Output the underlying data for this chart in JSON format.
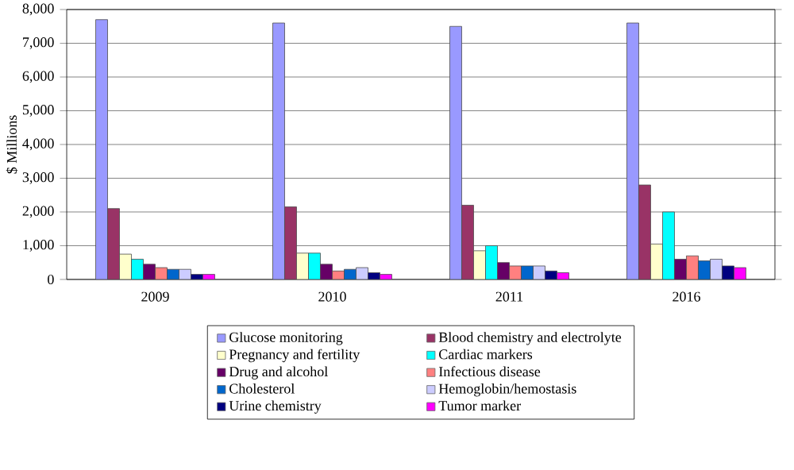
{
  "chart_data": {
    "type": "bar",
    "ylabel": "$ Millions",
    "categories": [
      "2009",
      "2010",
      "2011",
      "2016"
    ],
    "series": [
      {
        "name": "Glucose monitoring",
        "color": "#9999ff",
        "values": [
          7700,
          7600,
          7500,
          7600
        ]
      },
      {
        "name": "Blood chemistry and electrolyte",
        "color": "#993366",
        "values": [
          2100,
          2150,
          2200,
          2800
        ]
      },
      {
        "name": "Pregnancy and fertility",
        "color": "#ffffcc",
        "values": [
          750,
          780,
          850,
          1050
        ]
      },
      {
        "name": "Cardiac markers",
        "color": "#00ffff",
        "values": [
          600,
          780,
          1000,
          2000
        ]
      },
      {
        "name": "Drug and alcohol",
        "color": "#660066",
        "values": [
          450,
          450,
          500,
          600
        ]
      },
      {
        "name": "Infectious disease",
        "color": "#ff8080",
        "values": [
          350,
          250,
          400,
          700
        ]
      },
      {
        "name": "Cholesterol",
        "color": "#0066cc",
        "values": [
          300,
          300,
          400,
          550
        ]
      },
      {
        "name": "Hemoglobin/hemostasis",
        "color": "#ccccff",
        "values": [
          300,
          350,
          400,
          600
        ]
      },
      {
        "name": "Urine chemistry",
        "color": "#000080",
        "values": [
          150,
          200,
          250,
          400
        ]
      },
      {
        "name": "Tumor marker",
        "color": "#ff00ff",
        "values": [
          150,
          150,
          200,
          350
        ]
      }
    ],
    "ylim": [
      0,
      8000
    ],
    "yticks": [
      0,
      {
        "value": 1000,
        "label": "1,000"
      },
      {
        "value": 2000,
        "label": "2,000"
      },
      {
        "value": 3000,
        "label": "3,000"
      },
      {
        "value": 4000,
        "label": "4,000"
      },
      {
        "value": 5000,
        "label": "5,000"
      },
      {
        "value": 6000,
        "label": "6,000"
      },
      {
        "value": 7000,
        "label": "7,000"
      },
      {
        "value": 8000,
        "label": "8,000"
      }
    ],
    "grid": "y",
    "legend": "bottom"
  }
}
